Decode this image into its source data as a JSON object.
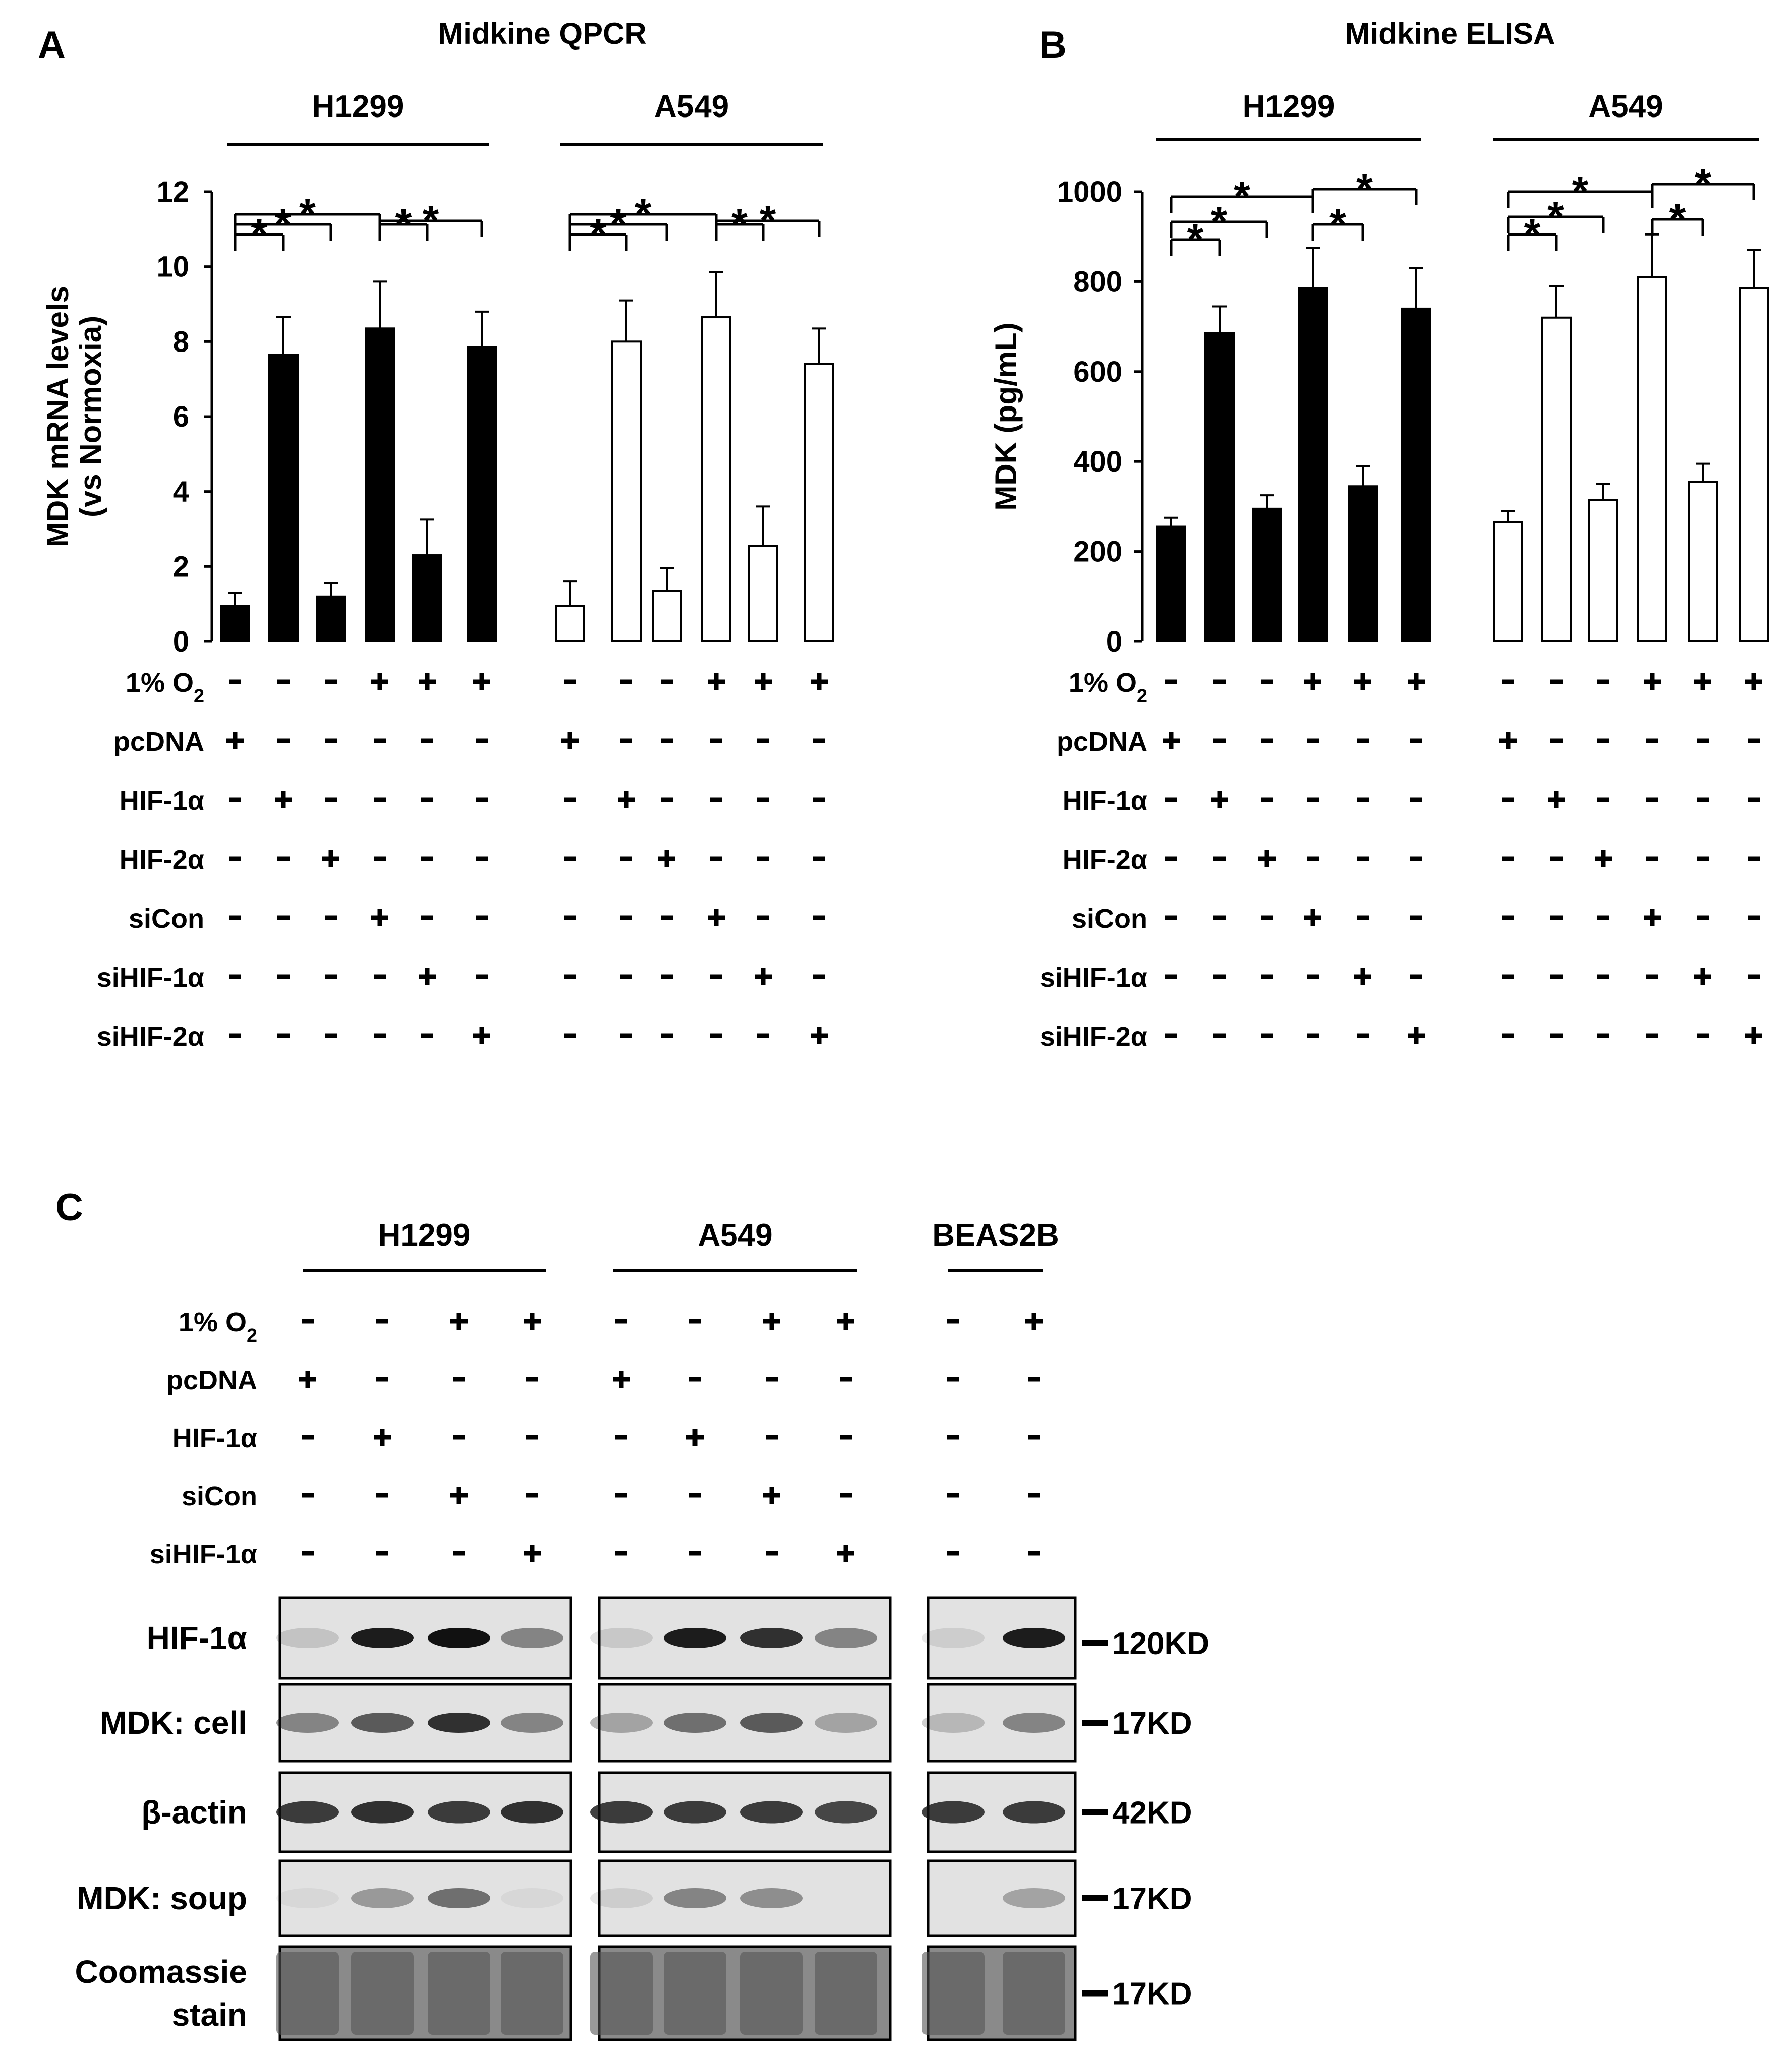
{
  "panels": {
    "A": {
      "letter": "A",
      "title": "Midkine QPCR"
    },
    "B": {
      "letter": "B",
      "title": "Midkine ELISA"
    },
    "C": {
      "letter": "C"
    }
  },
  "cell_lines": [
    "H1299",
    "A549",
    "BEAS2B"
  ],
  "chart_data": [
    {
      "type": "bar",
      "panel": "A",
      "title": "Midkine QPCR",
      "ylabel_lines": [
        "MDK mRNA levels",
        "(vs Normoxia)"
      ],
      "ylim": [
        0,
        12
      ],
      "yticks": [
        0,
        2,
        4,
        6,
        8,
        10,
        12
      ],
      "groups": [
        "H1299",
        "A549"
      ],
      "series": [
        {
          "group": "H1299",
          "fill": "#000000",
          "values": [
            0.95,
            7.65,
            1.2,
            8.35,
            2.3,
            7.85
          ],
          "errors": [
            0.35,
            1.0,
            0.35,
            1.25,
            0.95,
            0.95
          ]
        },
        {
          "group": "A549",
          "fill": "#ffffff",
          "values": [
            0.95,
            8.0,
            1.35,
            8.65,
            2.55,
            7.4
          ],
          "errors": [
            0.65,
            1.1,
            0.6,
            1.2,
            1.05,
            0.95
          ]
        }
      ],
      "significance": "*"
    },
    {
      "type": "bar",
      "panel": "B",
      "title": "Midkine ELISA",
      "ylabel_lines": [
        "MDK (pg/mL)"
      ],
      "ylim": [
        0,
        1000
      ],
      "yticks": [
        0,
        200,
        400,
        600,
        800,
        1000
      ],
      "groups": [
        "H1299",
        "A549"
      ],
      "series": [
        {
          "group": "H1299",
          "fill": "#000000",
          "values": [
            255,
            685,
            295,
            785,
            345,
            740
          ],
          "errors": [
            20,
            60,
            30,
            90,
            45,
            90
          ]
        },
        {
          "group": "A549",
          "fill": "#ffffff",
          "values": [
            265,
            720,
            315,
            810,
            355,
            785
          ],
          "errors": [
            25,
            70,
            35,
            95,
            40,
            85
          ]
        }
      ],
      "significance": "*"
    }
  ],
  "conditions_AB": {
    "labels": [
      "1% O2",
      "pcDNA",
      "HIF-1α",
      "HIF-2α",
      "siCon",
      "siHIF-1α",
      "siHIF-2α"
    ],
    "rows": [
      [
        "-",
        "-",
        "-",
        "+",
        "+",
        "+"
      ],
      [
        "+",
        "-",
        "-",
        "-",
        "-",
        "-"
      ],
      [
        "-",
        "+",
        "-",
        "-",
        "-",
        "-"
      ],
      [
        "-",
        "-",
        "+",
        "-",
        "-",
        "-"
      ],
      [
        "-",
        "-",
        "-",
        "+",
        "-",
        "-"
      ],
      [
        "-",
        "-",
        "-",
        "-",
        "+",
        "-"
      ],
      [
        "-",
        "-",
        "-",
        "-",
        "-",
        "+"
      ]
    ]
  },
  "conditions_C": {
    "labels": [
      "1% O2",
      "pcDNA",
      "HIF-1α",
      "siCon",
      "siHIF-1α"
    ],
    "rows": [
      [
        "-",
        "-",
        "+",
        "+"
      ],
      [
        "+",
        "-",
        "-",
        "-"
      ],
      [
        "-",
        "+",
        "-",
        "-"
      ],
      [
        "-",
        "-",
        "+",
        "-"
      ],
      [
        "-",
        "-",
        "-",
        "+"
      ]
    ],
    "beas2b_rows": [
      [
        "-",
        "+"
      ],
      [
        "-",
        "-"
      ],
      [
        "-",
        "-"
      ],
      [
        "-",
        "-"
      ],
      [
        "-",
        "-"
      ]
    ]
  },
  "blots": {
    "rows": [
      {
        "label_lines": [
          "HIF-1α"
        ],
        "marker": "120KD"
      },
      {
        "label_lines": [
          "MDK: cell"
        ],
        "marker": "17KD"
      },
      {
        "label_lines": [
          "β-actin"
        ],
        "marker": "42KD"
      },
      {
        "label_lines": [
          "MDK: soup"
        ],
        "marker": "17KD"
      },
      {
        "label_lines": [
          "Coomassie",
          "stain"
        ],
        "marker": "17KD"
      }
    ],
    "band_intensity": [
      [
        [
          0.15,
          0.95,
          1.0,
          0.45
        ],
        [
          0.12,
          0.95,
          0.85,
          0.45
        ],
        [
          0.1,
          0.95
        ]
      ],
      [
        [
          0.45,
          0.65,
          0.85,
          0.45
        ],
        [
          0.3,
          0.55,
          0.65,
          0.3
        ],
        [
          0.2,
          0.45
        ]
      ],
      [
        [
          0.8,
          0.85,
          0.8,
          0.85
        ],
        [
          0.8,
          0.8,
          0.8,
          0.75
        ],
        [
          0.8,
          0.8
        ]
      ],
      [
        [
          0.05,
          0.35,
          0.55,
          0.05
        ],
        [
          0.1,
          0.45,
          0.4,
          0.0
        ],
        [
          0.0,
          0.3
        ]
      ],
      [
        [
          0.6,
          0.6,
          0.6,
          0.6
        ],
        [
          0.6,
          0.6,
          0.6,
          0.6
        ],
        [
          0.6,
          0.6
        ]
      ]
    ]
  }
}
